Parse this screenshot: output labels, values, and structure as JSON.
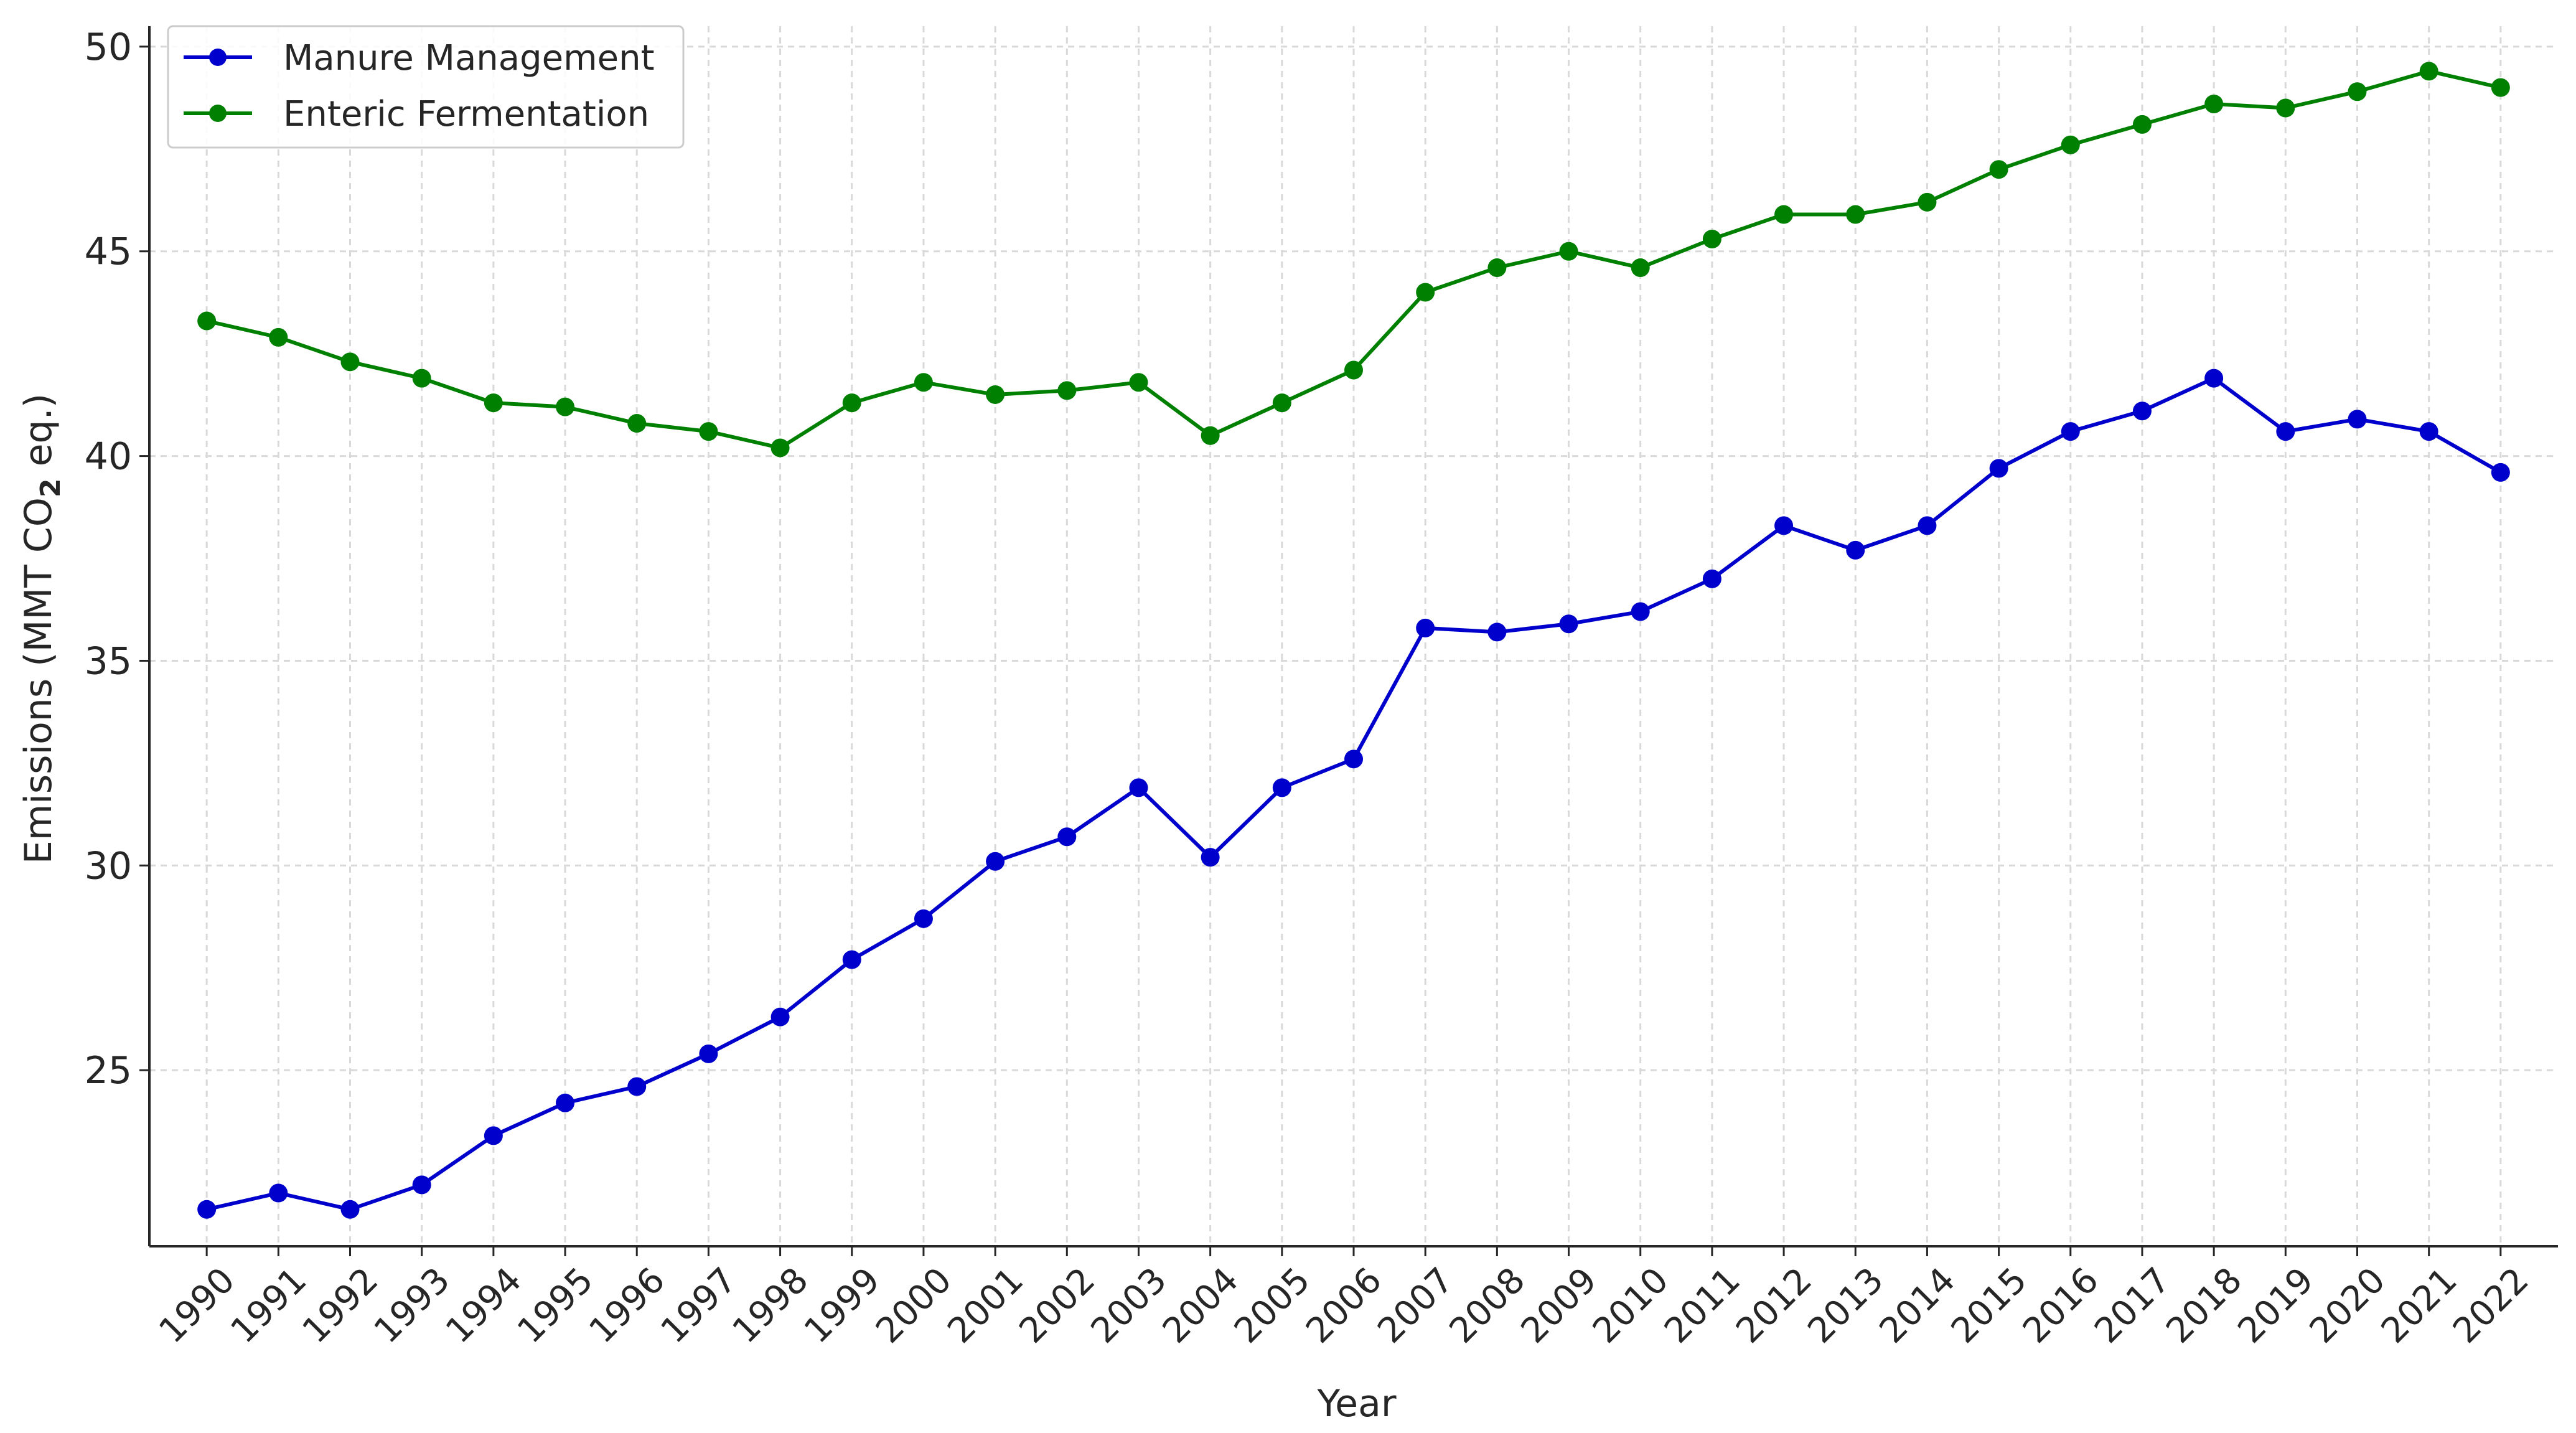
{
  "chart_data": {
    "type": "line",
    "title": "",
    "xlabel": "Year",
    "ylabel_main": "Emissions (MMT CO",
    "ylabel_sub": "2",
    "ylabel_end": " eq.)",
    "x": [
      1990,
      1991,
      1992,
      1993,
      1994,
      1995,
      1996,
      1997,
      1998,
      1999,
      2000,
      2001,
      2002,
      2003,
      2004,
      2005,
      2006,
      2007,
      2008,
      2009,
      2010,
      2011,
      2012,
      2013,
      2014,
      2015,
      2016,
      2017,
      2018,
      2019,
      2020,
      2021,
      2022
    ],
    "ylim": [
      20.7,
      50.5
    ],
    "yticks": [
      25,
      30,
      35,
      40,
      45,
      50
    ],
    "grid": true,
    "legend_position": "top-left",
    "series": [
      {
        "name": "Manure Management",
        "color": "#0000cc",
        "values": [
          21.6,
          22.0,
          21.6,
          22.2,
          23.4,
          24.2,
          24.6,
          25.4,
          26.3,
          27.7,
          28.7,
          30.1,
          30.7,
          31.9,
          30.2,
          31.9,
          32.6,
          35.8,
          35.7,
          35.9,
          36.2,
          37.0,
          38.3,
          37.7,
          38.3,
          39.7,
          40.6,
          41.1,
          41.9,
          40.6,
          40.9,
          40.6,
          39.6
        ]
      },
      {
        "name": "Enteric Fermentation",
        "color": "#008000",
        "values": [
          43.3,
          42.9,
          42.3,
          41.9,
          41.3,
          41.2,
          40.8,
          40.6,
          40.2,
          41.3,
          41.8,
          41.5,
          41.6,
          41.8,
          40.5,
          41.3,
          42.1,
          44.0,
          44.6,
          45.0,
          44.6,
          45.3,
          45.9,
          45.9,
          46.2,
          47.0,
          47.6,
          48.1,
          48.6,
          48.5,
          48.9,
          49.4,
          49.0
        ]
      }
    ]
  }
}
